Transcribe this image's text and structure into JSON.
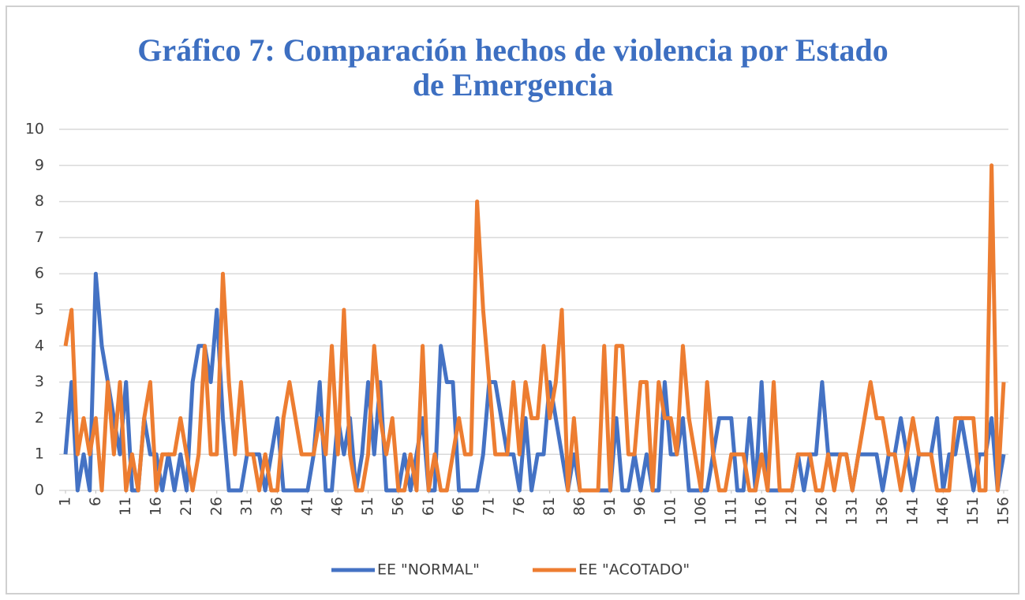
{
  "chart_data": {
    "type": "line",
    "title": "Gráfico 7: Comparación hechos de violencia por Estado de Emergencia",
    "x": [
      1,
      2,
      3,
      4,
      5,
      6,
      7,
      8,
      9,
      10,
      11,
      12,
      13,
      14,
      15,
      16,
      17,
      18,
      19,
      20,
      21,
      22,
      23,
      24,
      25,
      26,
      27,
      28,
      29,
      30,
      31,
      32,
      33,
      34,
      35,
      36,
      37,
      38,
      39,
      40,
      41,
      42,
      43,
      44,
      45,
      46,
      47,
      48,
      49,
      50,
      51,
      52,
      53,
      54,
      55,
      56,
      57,
      58,
      59,
      60,
      61,
      62,
      63,
      64,
      65,
      66,
      67,
      68,
      69,
      70,
      71,
      72,
      73,
      74,
      75,
      76,
      77,
      78,
      79,
      80,
      81,
      82,
      83,
      84,
      85,
      86,
      87,
      88,
      89,
      90,
      91,
      92,
      93,
      94,
      95,
      96,
      97,
      98,
      99,
      100,
      101,
      102,
      103,
      104,
      105,
      106,
      107,
      108,
      109,
      110,
      111,
      112,
      113,
      114,
      115,
      116,
      117,
      118,
      119,
      120,
      121,
      122,
      123,
      124,
      125,
      126,
      127,
      128,
      129,
      130,
      131,
      132,
      133,
      134,
      135,
      136,
      137,
      138,
      139,
      140,
      141,
      142,
      143,
      144,
      145,
      146,
      147,
      148,
      149,
      150,
      151,
      152,
      153,
      154,
      155,
      156
    ],
    "series": [
      {
        "name": "EE \"NORMAL\"",
        "color": "#4472c4",
        "values": [
          1,
          3,
          0,
          1,
          0,
          6,
          4,
          3,
          2,
          1,
          3,
          0,
          0,
          2,
          1,
          1,
          0,
          1,
          0,
          1,
          0,
          3,
          4,
          4,
          3,
          5,
          2,
          0,
          0,
          0,
          1,
          1,
          1,
          0,
          1,
          2,
          0,
          0,
          0,
          0,
          0,
          1,
          3,
          0,
          0,
          2,
          1,
          2,
          0,
          1,
          3,
          1,
          3,
          0,
          0,
          0,
          1,
          0,
          1,
          2,
          0,
          0,
          4,
          3,
          3,
          0,
          0,
          0,
          0,
          1,
          3,
          3,
          2,
          1,
          1,
          0,
          2,
          0,
          1,
          1,
          3,
          2,
          1,
          0,
          1,
          0,
          0,
          0,
          0,
          0,
          0,
          2,
          0,
          0,
          1,
          0,
          1,
          0,
          0,
          3,
          1,
          1,
          2,
          0,
          0,
          0,
          0,
          1,
          2,
          2,
          2,
          0,
          0,
          2,
          0,
          3,
          0,
          0,
          0,
          0,
          0,
          1,
          0,
          1,
          1,
          3,
          1,
          1,
          1,
          1,
          0,
          1,
          1,
          1,
          1,
          0,
          1,
          1,
          2,
          1,
          0,
          1,
          1,
          1,
          2,
          0,
          1,
          1,
          2,
          1,
          0,
          1,
          1,
          2,
          0,
          1
        ]
      },
      {
        "name": "EE \"ACOTADO\"",
        "color": "#ed7d31",
        "values": [
          4,
          5,
          1,
          2,
          1,
          2,
          0,
          3,
          1,
          3,
          0,
          1,
          0,
          2,
          3,
          0,
          1,
          1,
          1,
          2,
          1,
          0,
          1,
          4,
          1,
          1,
          6,
          3,
          1,
          3,
          1,
          1,
          0,
          1,
          0,
          0,
          2,
          3,
          2,
          1,
          1,
          1,
          2,
          1,
          4,
          1,
          5,
          1,
          0,
          0,
          1,
          4,
          2,
          1,
          2,
          0,
          0,
          1,
          0,
          4,
          0,
          1,
          0,
          0,
          1,
          2,
          1,
          1,
          8,
          5,
          3,
          1,
          1,
          1,
          3,
          1,
          3,
          2,
          2,
          4,
          2,
          3,
          5,
          0,
          2,
          0,
          0,
          0,
          0,
          4,
          0,
          4,
          4,
          1,
          1,
          3,
          3,
          0,
          3,
          2,
          2,
          1,
          4,
          2,
          1,
          0,
          3,
          1,
          0,
          0,
          1,
          1,
          1,
          0,
          0,
          1,
          0,
          3,
          0,
          0,
          0,
          1,
          1,
          1,
          0,
          0,
          1,
          0,
          1,
          1,
          0,
          1,
          2,
          3,
          2,
          2,
          1,
          1,
          0,
          1,
          2,
          1,
          1,
          1,
          0,
          0,
          0,
          2,
          2,
          2,
          2,
          0,
          0,
          9,
          0,
          3
        ]
      }
    ],
    "xlim": [
      1,
      156
    ],
    "xticks": [
      1,
      6,
      11,
      16,
      21,
      26,
      31,
      36,
      41,
      46,
      51,
      56,
      61,
      66,
      71,
      76,
      81,
      86,
      91,
      96,
      101,
      106,
      111,
      116,
      121,
      126,
      131,
      136,
      141,
      146,
      151,
      156
    ],
    "ylim": [
      0,
      10
    ],
    "yticks": [
      0,
      1,
      2,
      3,
      4,
      5,
      6,
      7,
      8,
      9,
      10
    ],
    "grid": true,
    "legend": "bottom"
  }
}
